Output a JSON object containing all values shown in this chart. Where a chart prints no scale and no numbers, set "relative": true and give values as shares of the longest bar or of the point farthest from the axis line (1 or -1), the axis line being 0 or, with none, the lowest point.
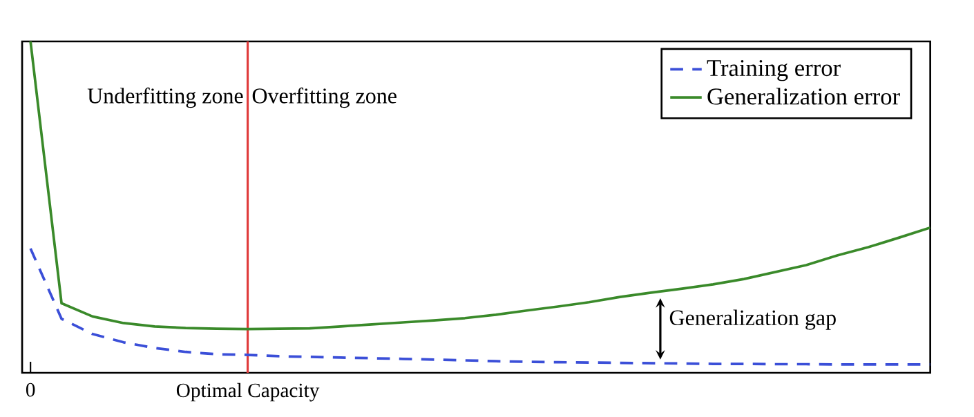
{
  "chart_data": {
    "type": "line",
    "relative": true,
    "tick_labels": "x",
    "legend": "top right",
    "marker": "none",
    "grid": false,
    "categories": [
      "0",
      null,
      null,
      null,
      null,
      null,
      null,
      "Optimal Capacity",
      null,
      null,
      null,
      null,
      null,
      null,
      null,
      null,
      null,
      null,
      null,
      null,
      null,
      null,
      null,
      null,
      null,
      null,
      null,
      null,
      null,
      null
    ],
    "series": [
      {
        "name": "Training error",
        "color": "#3b4fd8",
        "line_style": "dashed",
        "values": [
          0.375,
          0.163,
          0.117,
          0.092,
          0.075,
          0.063,
          0.056,
          0.054,
          0.05,
          0.048,
          0.046,
          0.044,
          0.042,
          0.04,
          0.0375,
          0.035,
          0.033,
          0.032,
          0.031,
          0.03,
          0.029,
          0.028,
          0.027,
          0.027,
          0.026,
          0.026,
          0.025,
          0.025,
          0.025,
          0.025
        ]
      },
      {
        "name": "Generalization error",
        "color": "#3a8a2a",
        "line_style": "solid",
        "values": [
          1.0,
          0.21,
          0.17,
          0.15,
          0.14,
          0.135,
          0.133,
          0.132,
          0.133,
          0.134,
          0.14,
          0.146,
          0.152,
          0.158,
          0.165,
          0.175,
          0.188,
          0.2,
          0.213,
          0.229,
          0.242,
          0.254,
          0.267,
          0.283,
          0.304,
          0.325,
          0.354,
          0.379,
          0.408,
          0.438
        ]
      }
    ],
    "ref_lines": [
      {
        "axis": "x",
        "value": "Optimal Capacity",
        "color": "#e03c3c",
        "line_style": "solid"
      }
    ],
    "annotations": [
      "Underfitting zone",
      "Overfitting zone",
      "Generalization gap"
    ]
  }
}
